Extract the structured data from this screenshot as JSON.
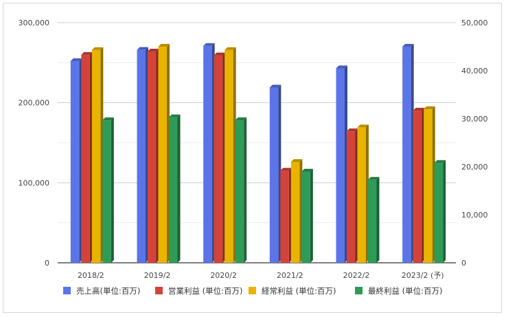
{
  "chart_data": {
    "type": "bar",
    "categories": [
      "2018/2",
      "2019/2",
      "2020/2",
      "2021/2",
      "2022/2",
      "2023/2 (予)"
    ],
    "series": [
      {
        "name": "売上高(単位:百万)",
        "axis": "left",
        "color": "#5b74e8",
        "values": [
          252000,
          266000,
          271000,
          219000,
          243000,
          270000
        ]
      },
      {
        "name": "営業利益 (単位:百万)",
        "axis": "right",
        "color": "#d2433a",
        "values": [
          43300,
          44000,
          43200,
          19200,
          27400,
          31700
        ]
      },
      {
        "name": "経常利益 (単位:百万)",
        "axis": "right",
        "color": "#e8b400",
        "values": [
          44300,
          45000,
          44300,
          21000,
          28200,
          32000
        ]
      },
      {
        "name": "最終利益 (単位:百万)",
        "axis": "right",
        "color": "#2e9b57",
        "values": [
          29700,
          30300,
          29700,
          19000,
          17300,
          20800
        ]
      }
    ],
    "y_left": {
      "min": 0,
      "max": 300000,
      "ticks": [
        "300,000",
        "200,000",
        "100,000",
        "0"
      ],
      "tick_values": [
        300000,
        200000,
        100000,
        0
      ]
    },
    "y_right": {
      "min": 0,
      "max": 50000,
      "ticks": [
        "50,000",
        "40,000",
        "30,000",
        "20,000",
        "10,000",
        "0"
      ],
      "tick_values": [
        50000,
        40000,
        30000,
        20000,
        10000,
        0
      ]
    },
    "grid": true,
    "legend_position": "bottom"
  }
}
